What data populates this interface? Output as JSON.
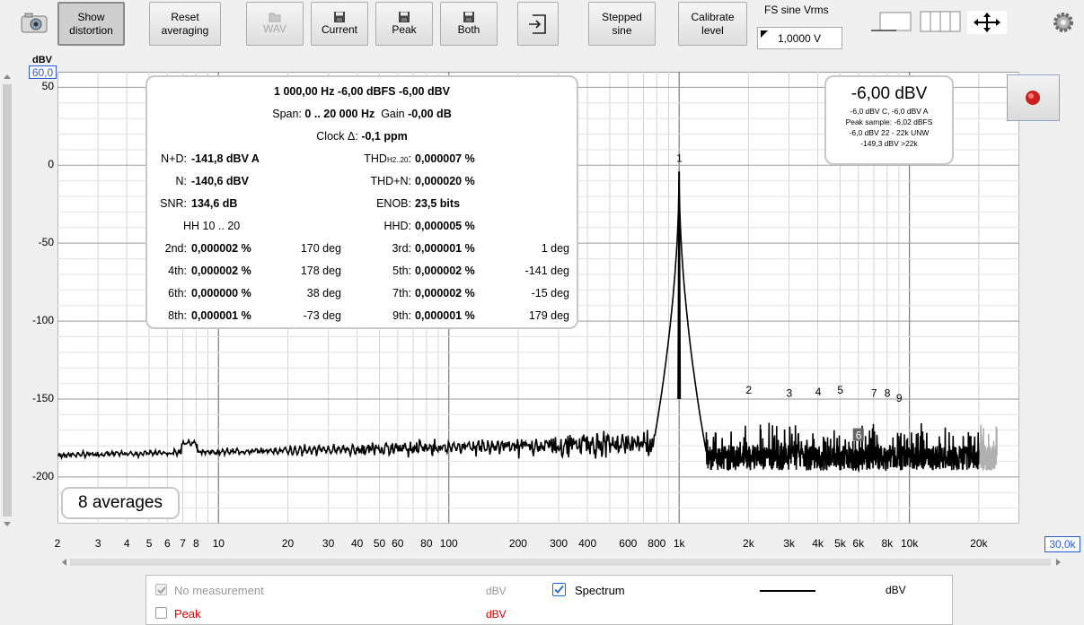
{
  "toolbar": {
    "show_distortion": "Show\ndistortion",
    "reset_averaging": "Reset\naveraging",
    "wav": "WAV",
    "current": "Current",
    "peak": "Peak",
    "both": "Both",
    "stepped_sine": "Stepped\nsine",
    "calibrate_level": "Calibrate\nlevel",
    "fs_sine_label": "FS sine Vrms",
    "fs_sine_value": "1,0000 V"
  },
  "plot": {
    "y_unit": "dBV",
    "y_top_value": "60,0",
    "x_right_value": "30,0k",
    "y_ticks": [
      "50",
      "0",
      "-50",
      "-100",
      "-150",
      "-200"
    ],
    "x_ticks": [
      "2",
      "3",
      "4",
      "5",
      "6",
      "7",
      "8",
      "10",
      "20",
      "30",
      "40",
      "50",
      "60",
      "80",
      "100",
      "200",
      "300",
      "400",
      "600",
      "800",
      "1k",
      "2k",
      "3k",
      "4k",
      "5k",
      "6k",
      "8k",
      "10k",
      "20k"
    ],
    "harmonic_labels": [
      "1",
      "2",
      "3",
      "4",
      "5",
      "6",
      "7",
      "8",
      "9"
    ]
  },
  "info": {
    "line1": "1 000,00 Hz  -6,00 dBFS  -6,00 dBV",
    "span_label": "Span:",
    "span_value": "0 .. 20 000 Hz",
    "gain_label": "Gain",
    "gain_value": "-0,00 dB",
    "clock_label": "Clock Δ:",
    "clock_value": "-0,1 ppm",
    "nd_label": "N+D:",
    "nd_value": "-141,8 dBV A",
    "thd_label": "THD",
    "thd_sub": "H2..20",
    "thd_value": "0,000007 %",
    "n_label": "N:",
    "n_value": "-140,6 dBV",
    "thdn_label": "THD+N:",
    "thdn_value": "0,000020 %",
    "snr_label": "SNR:",
    "snr_value": "134,6 dB",
    "enob_label": "ENOB:",
    "enob_value": "23,5 bits",
    "hh_label": "HH 10 .. 20",
    "hhd_label": "HHD:",
    "hhd_value": "0,000005 %",
    "harmonics": [
      {
        "l1": "2nd:",
        "v1": "0,000002 %",
        "d1": "170 deg",
        "l2": "3rd:",
        "v2": "0,000001 %",
        "d2": "1 deg"
      },
      {
        "l1": "4th:",
        "v1": "0,000002 %",
        "d1": "178 deg",
        "l2": "5th:",
        "v2": "0,000002 %",
        "d2": "-141 deg"
      },
      {
        "l1": "6th:",
        "v1": "0,000000 %",
        "d1": "38 deg",
        "l2": "7th:",
        "v2": "0,000002 %",
        "d2": "-15 deg"
      },
      {
        "l1": "8th:",
        "v1": "0,000001 %",
        "d1": "-73 deg",
        "l2": "9th:",
        "v2": "0,000001 %",
        "d2": "179 deg"
      }
    ]
  },
  "level_box": {
    "big": "-6,00 dBV",
    "l1": "-6,0 dBV C, -6,0 dBV A",
    "l2": "Peak sample: -6,02 dBFS",
    "l3": "-6,0 dBV 22 - 22k UNW",
    "l4": "-149,3 dBV >22k"
  },
  "averages": "8 averages",
  "legend": {
    "no_measurement": "No measurement",
    "no_measurement_unit": "dBV",
    "spectrum": "Spectrum",
    "spectrum_unit": "dBV",
    "peak": "Peak",
    "peak_unit": "dBV",
    "peak_color": "#e00000"
  }
}
